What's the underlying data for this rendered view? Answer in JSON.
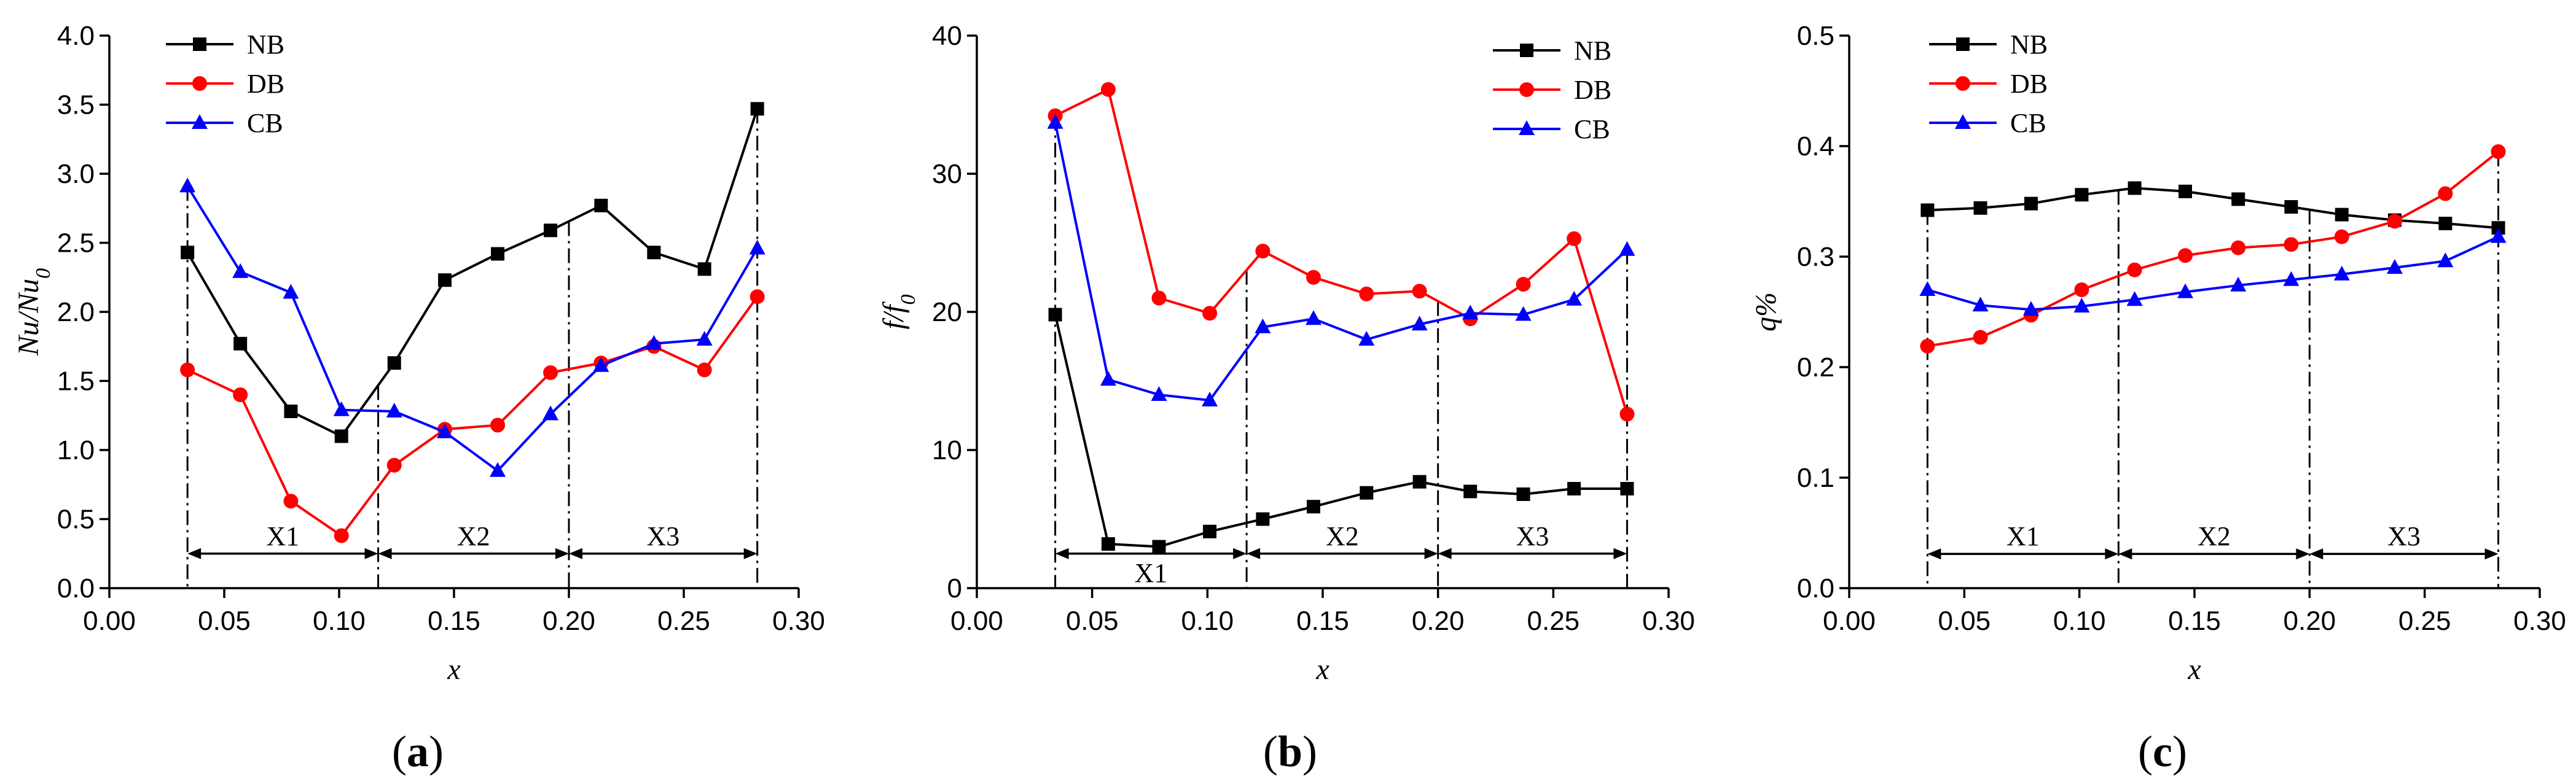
{
  "chart_data": [
    {
      "type": "line",
      "panel_label": "(a)",
      "xlabel": "x",
      "ylabel": "Nu/Nu0",
      "xlim": [
        0.0,
        0.3
      ],
      "ylim": [
        0.0,
        4.0
      ],
      "xticks": [
        0.0,
        0.05,
        0.1,
        0.15,
        0.2,
        0.25,
        0.3
      ],
      "xtick_labels": [
        "0.00",
        "0.05",
        "0.10",
        "0.15",
        "0.20",
        "0.25",
        "0.30"
      ],
      "yticks": [
        0.0,
        0.5,
        1.0,
        1.5,
        2.0,
        2.5,
        3.0,
        3.5,
        4.0
      ],
      "ytick_labels": [
        "0.0",
        "0.5",
        "1.0",
        "1.5",
        "2.0",
        "2.5",
        "3.0",
        "3.5",
        "4.0"
      ],
      "legend_position": "top-left",
      "dividers_x": [
        0.034,
        0.117,
        0.2,
        0.282
      ],
      "regions": [
        {
          "label": "X1",
          "x0": 0.034,
          "x1": 0.117,
          "y": 0.25
        },
        {
          "label": "X2",
          "x0": 0.117,
          "x1": 0.2,
          "y": 0.25
        },
        {
          "label": "X3",
          "x0": 0.2,
          "x1": 0.282,
          "y": 0.25
        }
      ],
      "series": [
        {
          "name": "NB",
          "color": "#000000",
          "marker": "square",
          "x": [
            0.034,
            0.057,
            0.079,
            0.101,
            0.124,
            0.146,
            0.169,
            0.192,
            0.214,
            0.237,
            0.259,
            0.282
          ],
          "values": [
            2.43,
            1.77,
            1.28,
            1.1,
            1.63,
            2.23,
            2.42,
            2.59,
            2.77,
            2.43,
            2.31,
            3.47
          ]
        },
        {
          "name": "DB",
          "color": "#ff0000",
          "marker": "circle",
          "x": [
            0.034,
            0.057,
            0.079,
            0.101,
            0.124,
            0.146,
            0.169,
            0.192,
            0.214,
            0.237,
            0.259,
            0.282
          ],
          "values": [
            1.58,
            1.4,
            0.63,
            0.38,
            0.89,
            1.15,
            1.18,
            1.56,
            1.63,
            1.75,
            1.58,
            2.11
          ]
        },
        {
          "name": "CB",
          "color": "#0000ff",
          "marker": "triangle",
          "x": [
            0.034,
            0.057,
            0.079,
            0.101,
            0.124,
            0.146,
            0.169,
            0.192,
            0.214,
            0.237,
            0.259,
            0.282
          ],
          "values": [
            2.91,
            2.29,
            2.14,
            1.29,
            1.28,
            1.13,
            0.85,
            1.26,
            1.61,
            1.77,
            1.8,
            2.46
          ]
        }
      ]
    },
    {
      "type": "line",
      "panel_label": "(b)",
      "xlabel": "x",
      "ylabel": "f/f0",
      "xlim": [
        0.0,
        0.3
      ],
      "ylim": [
        0,
        40
      ],
      "xticks": [
        0.0,
        0.05,
        0.1,
        0.15,
        0.2,
        0.25,
        0.3
      ],
      "xtick_labels": [
        "0.00",
        "0.05",
        "0.10",
        "0.15",
        "0.20",
        "0.25",
        "0.30"
      ],
      "yticks": [
        0,
        10,
        20,
        30,
        40
      ],
      "ytick_labels": [
        "0",
        "10",
        "20",
        "30",
        "40"
      ],
      "legend_position": "top-right",
      "dividers_x": [
        0.034,
        0.117,
        0.2,
        0.282
      ],
      "regions": [
        {
          "label": "X1",
          "x0": 0.034,
          "x1": 0.117,
          "y": 2.5,
          "label_below": true
        },
        {
          "label": "X2",
          "x0": 0.117,
          "x1": 0.2,
          "y": 2.5
        },
        {
          "label": "X3",
          "x0": 0.2,
          "x1": 0.282,
          "y": 2.5
        }
      ],
      "series": [
        {
          "name": "NB",
          "color": "#000000",
          "marker": "square",
          "x": [
            0.034,
            0.057,
            0.079,
            0.101,
            0.124,
            0.146,
            0.169,
            0.192,
            0.214,
            0.237,
            0.259,
            0.282
          ],
          "values": [
            19.8,
            3.2,
            3.0,
            4.1,
            5.0,
            5.9,
            6.9,
            7.7,
            7.0,
            6.8,
            7.2,
            7.2
          ]
        },
        {
          "name": "DB",
          "color": "#ff0000",
          "marker": "circle",
          "x": [
            0.034,
            0.057,
            0.079,
            0.101,
            0.124,
            0.146,
            0.169,
            0.192,
            0.214,
            0.237,
            0.259,
            0.282
          ],
          "values": [
            34.2,
            36.1,
            21.0,
            19.9,
            24.4,
            22.5,
            21.3,
            21.5,
            19.5,
            22.0,
            25.3,
            12.6
          ]
        },
        {
          "name": "CB",
          "color": "#0000ff",
          "marker": "triangle",
          "x": [
            0.034,
            0.057,
            0.079,
            0.101,
            0.124,
            0.146,
            0.169,
            0.192,
            0.214,
            0.237,
            0.259,
            0.282
          ],
          "values": [
            33.7,
            15.1,
            14.0,
            13.6,
            18.9,
            19.5,
            18.0,
            19.1,
            19.9,
            19.8,
            20.9,
            24.5
          ]
        }
      ]
    },
    {
      "type": "line",
      "panel_label": "(c)",
      "xlabel": "x",
      "ylabel": "q%",
      "xlim": [
        0.0,
        0.3
      ],
      "ylim": [
        0.0,
        0.5
      ],
      "xticks": [
        0.0,
        0.05,
        0.1,
        0.15,
        0.2,
        0.25,
        0.3
      ],
      "xtick_labels": [
        "0.00",
        "0.05",
        "0.10",
        "0.15",
        "0.20",
        "0.25",
        "0.30"
      ],
      "yticks": [
        0.0,
        0.1,
        0.2,
        0.3,
        0.4,
        0.5
      ],
      "ytick_labels": [
        "0.0",
        "0.1",
        "0.2",
        "0.3",
        "0.4",
        "0.5"
      ],
      "legend_position": "top-left",
      "dividers_x": [
        0.034,
        0.117,
        0.2,
        0.282
      ],
      "regions": [
        {
          "label": "X1",
          "x0": 0.034,
          "x1": 0.117,
          "y": 0.031
        },
        {
          "label": "X2",
          "x0": 0.117,
          "x1": 0.2,
          "y": 0.031
        },
        {
          "label": "X3",
          "x0": 0.2,
          "x1": 0.282,
          "y": 0.031
        }
      ],
      "series": [
        {
          "name": "NB",
          "color": "#000000",
          "marker": "square",
          "x": [
            0.034,
            0.057,
            0.079,
            0.101,
            0.124,
            0.146,
            0.169,
            0.192,
            0.214,
            0.237,
            0.259,
            0.282
          ],
          "values": [
            0.342,
            0.344,
            0.348,
            0.356,
            0.362,
            0.359,
            0.352,
            0.345,
            0.338,
            0.333,
            0.33,
            0.326
          ]
        },
        {
          "name": "DB",
          "color": "#ff0000",
          "marker": "circle",
          "x": [
            0.034,
            0.057,
            0.079,
            0.101,
            0.124,
            0.146,
            0.169,
            0.192,
            0.214,
            0.237,
            0.259,
            0.282
          ],
          "values": [
            0.219,
            0.227,
            0.247,
            0.27,
            0.288,
            0.301,
            0.308,
            0.311,
            0.318,
            0.332,
            0.357,
            0.395
          ]
        },
        {
          "name": "CB",
          "color": "#0000ff",
          "marker": "triangle",
          "x": [
            0.034,
            0.057,
            0.079,
            0.101,
            0.124,
            0.146,
            0.169,
            0.192,
            0.214,
            0.237,
            0.259,
            0.282
          ],
          "values": [
            0.27,
            0.256,
            0.252,
            0.255,
            0.261,
            0.268,
            0.274,
            0.279,
            0.284,
            0.29,
            0.296,
            0.318
          ]
        }
      ]
    }
  ]
}
